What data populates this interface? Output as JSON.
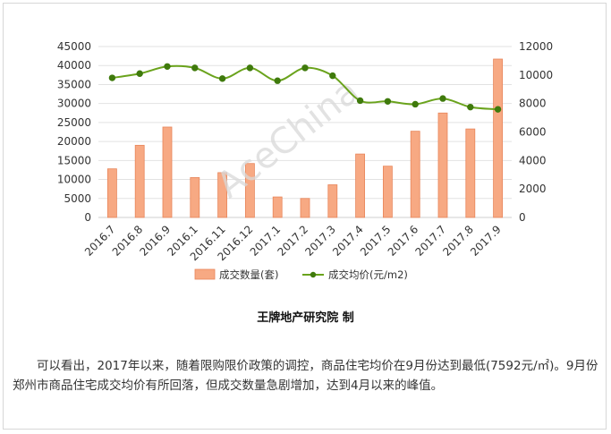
{
  "chart_data": {
    "type": "bar+line",
    "categories": [
      "2016.7",
      "2016.8",
      "2016.9",
      "2016.1",
      "2016.11",
      "2016.12",
      "2017.1",
      "2017.2",
      "2017.3",
      "2017.4",
      "2017.5",
      "2017.6",
      "2017.7",
      "2017.8",
      "2017.9"
    ],
    "series": [
      {
        "name": "成交数量(套)",
        "type": "bar",
        "axis": "left",
        "color": "#f7a983",
        "values": [
          12800,
          19000,
          23800,
          10500,
          11800,
          14200,
          5400,
          5000,
          8600,
          16700,
          13500,
          22700,
          27500,
          23300,
          41700
        ]
      },
      {
        "name": "成交均价(元/m2)",
        "type": "line",
        "axis": "right",
        "color": "#6aa31c",
        "values": [
          9800,
          10100,
          10600,
          10500,
          9750,
          10500,
          9600,
          10500,
          9950,
          8200,
          8150,
          7950,
          8350,
          7750,
          7592
        ]
      }
    ],
    "y_left": {
      "min": 0,
      "max": 45000,
      "ticks": [
        "0",
        "5000",
        "10000",
        "15000",
        "20000",
        "25000",
        "30000",
        "35000",
        "40000",
        "45000"
      ]
    },
    "y_right": {
      "min": 0,
      "max": 12000,
      "ticks": [
        "0",
        "2000",
        "4000",
        "6000",
        "8000",
        "10000",
        "12000"
      ]
    },
    "grid": true,
    "legend_position": "bottom",
    "watermark": "AceChina"
  },
  "caption": "王牌地产研究院 制",
  "paragraph": "可以看出，2017年以来，随着限购限价政策的调控，商品住宅均价在9月份达到最低(7592元/㎡)。9月份郑州市商品住宅成交均价有所回落，但成交数量急剧增加，达到4月以来的峰值。"
}
